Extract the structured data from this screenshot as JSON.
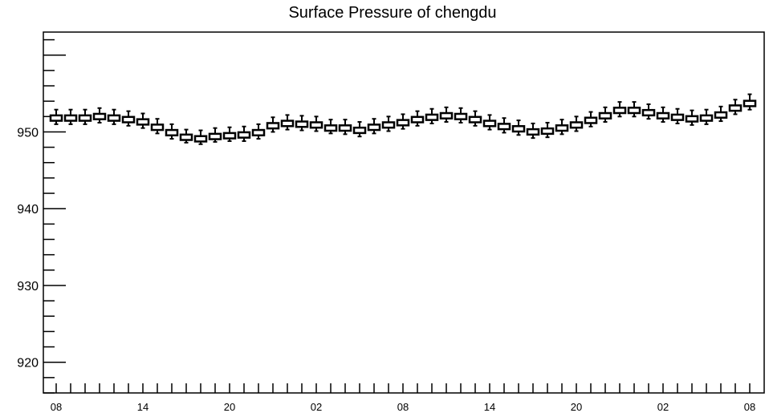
{
  "chart_data": {
    "type": "box",
    "title": "Surface Pressure of chengdu",
    "xlabel": "",
    "ylabel": "",
    "ylim": [
      916,
      963
    ],
    "y_ticks": [
      920,
      930,
      940,
      950
    ],
    "x_tick_labels": [
      "08",
      "14",
      "20",
      "02",
      "08",
      "14",
      "20",
      "02",
      "08"
    ],
    "series": [
      {
        "values": [
          951.8,
          951.8,
          951.8,
          952.0,
          951.8,
          951.6,
          951.3,
          950.6,
          949.9,
          949.3,
          949.1,
          949.4,
          949.5,
          949.6,
          949.9,
          950.8,
          951.1,
          951.0,
          950.9,
          950.5,
          950.5,
          950.2,
          950.6,
          950.9,
          951.2,
          951.6,
          951.9,
          952.1,
          952.0,
          951.6,
          951.1,
          950.7,
          950.4,
          950.0,
          950.1,
          950.5,
          950.9,
          951.5,
          952.1,
          952.8,
          952.8,
          952.5,
          952.1,
          951.9,
          951.7,
          951.8,
          952.2,
          953.1,
          953.7
        ],
        "whisker_low": [
          951.0,
          951.0,
          951.0,
          951.2,
          951.0,
          950.8,
          950.5,
          949.8,
          949.1,
          948.6,
          948.4,
          948.7,
          948.8,
          948.8,
          949.1,
          950.0,
          950.3,
          950.2,
          950.1,
          949.8,
          949.7,
          949.4,
          949.8,
          950.1,
          950.4,
          950.8,
          951.1,
          951.3,
          951.2,
          950.8,
          950.3,
          949.9,
          949.6,
          949.2,
          949.3,
          949.7,
          950.1,
          950.7,
          951.3,
          952.0,
          952.0,
          951.7,
          951.3,
          951.1,
          950.9,
          951.0,
          951.4,
          952.3,
          952.9
        ],
        "whisker_high": [
          952.9,
          952.9,
          952.9,
          953.1,
          952.9,
          952.7,
          952.4,
          951.7,
          951.0,
          950.3,
          950.2,
          950.5,
          950.6,
          950.7,
          951.0,
          951.9,
          952.2,
          952.1,
          952.0,
          951.6,
          951.6,
          951.3,
          951.7,
          952.0,
          952.3,
          952.7,
          953.0,
          953.2,
          953.1,
          952.7,
          952.2,
          951.8,
          951.5,
          951.1,
          951.2,
          951.6,
          952.0,
          952.6,
          953.2,
          953.9,
          953.9,
          953.6,
          953.2,
          953.0,
          952.8,
          952.9,
          953.3,
          954.2,
          954.9
        ]
      }
    ],
    "grid": false,
    "box_fill": "#ffffff",
    "line_color": "#000000"
  }
}
